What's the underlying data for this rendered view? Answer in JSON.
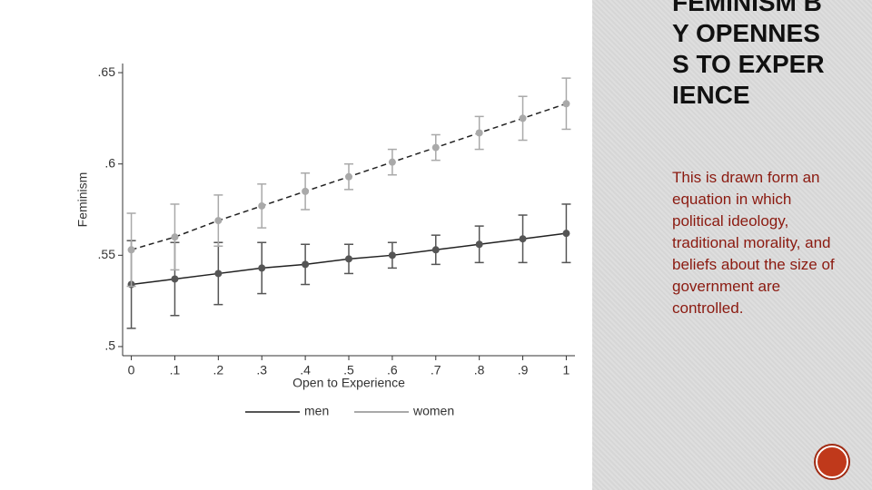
{
  "chart_data": {
    "type": "line",
    "x": [
      0,
      0.1,
      0.2,
      0.3,
      0.4,
      0.5,
      0.6,
      0.7,
      0.8,
      0.9,
      1
    ],
    "xticks": [
      {
        "value": 0,
        "label": "0"
      },
      {
        "value": 0.1,
        "label": ".1"
      },
      {
        "value": 0.2,
        "label": ".2"
      },
      {
        "value": 0.3,
        "label": ".3"
      },
      {
        "value": 0.4,
        "label": ".4"
      },
      {
        "value": 0.5,
        "label": ".5"
      },
      {
        "value": 0.6,
        "label": ".6"
      },
      {
        "value": 0.7,
        "label": ".7"
      },
      {
        "value": 0.8,
        "label": ".8"
      },
      {
        "value": 0.9,
        "label": ".9"
      },
      {
        "value": 1,
        "label": "1"
      }
    ],
    "xlim": [
      -0.02,
      1.02
    ],
    "ylim": [
      0.495,
      0.655
    ],
    "yticks": [
      {
        "value": 0.5,
        "label": ".5"
      },
      {
        "value": 0.55,
        "label": ".55"
      },
      {
        "value": 0.6,
        "label": ".6"
      },
      {
        "value": 0.65,
        "label": ".65"
      }
    ],
    "xlabel": "Open to Experience",
    "ylabel": "Feminism",
    "series": [
      {
        "name": "men",
        "color": "#555555",
        "dash": false,
        "values": [
          0.534,
          0.537,
          0.54,
          0.543,
          0.545,
          0.548,
          0.55,
          0.553,
          0.556,
          0.559,
          0.562
        ],
        "errors": [
          0.024,
          0.02,
          0.017,
          0.014,
          0.011,
          0.008,
          0.007,
          0.008,
          0.01,
          0.013,
          0.016
        ]
      },
      {
        "name": "women",
        "color": "#a9a9a9",
        "dash": true,
        "values": [
          0.553,
          0.56,
          0.569,
          0.577,
          0.585,
          0.593,
          0.601,
          0.609,
          0.617,
          0.625,
          0.633
        ],
        "errors": [
          0.02,
          0.018,
          0.014,
          0.012,
          0.01,
          0.007,
          0.007,
          0.007,
          0.009,
          0.012,
          0.014
        ]
      }
    ]
  },
  "slide": {
    "title": "FEMINISM BY OPENNESS TO EXPERIENCE",
    "body": "This is drawn form an equation in which political ideology, traditional morality, and beliefs about the size of government are controlled."
  }
}
